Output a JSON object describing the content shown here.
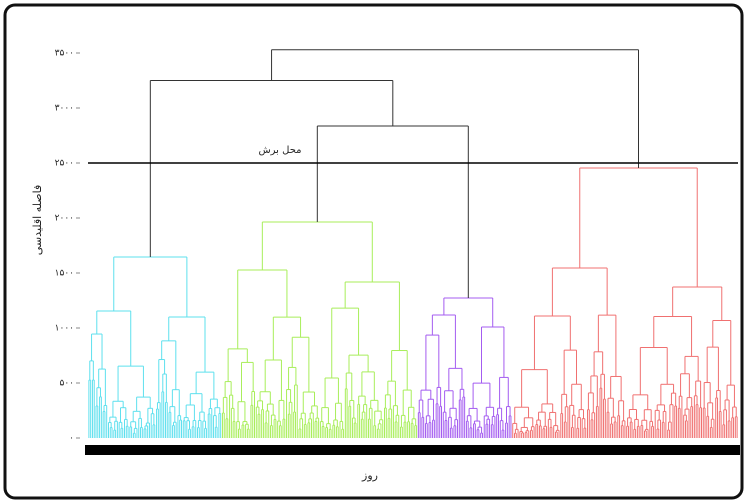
{
  "chart_data": {
    "type": "dendrogram",
    "ylabel": "فاصله اقلیدسی",
    "xlabel": "روز",
    "cut_label": "محل برش",
    "cut_height": 2500,
    "ylim": [
      0,
      3800
    ],
    "yticks": [
      {
        "value": 0,
        "label": "۰"
      },
      {
        "value": 500,
        "label": "۵۰۰"
      },
      {
        "value": 1000,
        "label": "۱۰۰۰"
      },
      {
        "value": 1500,
        "label": "۱۵۰۰"
      },
      {
        "value": 2000,
        "label": "۲۰۰۰"
      },
      {
        "value": 2500,
        "label": "۲۵۰۰"
      },
      {
        "value": 3000,
        "label": "۳۰۰۰"
      },
      {
        "value": 3500,
        "label": "۳۵۰۰"
      }
    ],
    "clusters": [
      {
        "color": "#5ee0ee",
        "leaf_count": 75,
        "height": 1645,
        "split_heights": [
          1155,
          1100
        ]
      },
      {
        "color": "#a8ee5a",
        "leaf_count": 110,
        "height": 1964,
        "split_heights": [
          1527,
          1418
        ]
      },
      {
        "color": "#a45cf0",
        "leaf_count": 53,
        "height": 1273,
        "split_heights": [
          1118,
          1009
        ]
      },
      {
        "color": "#f07070",
        "leaf_count": 127,
        "height": 2455,
        "split_heights": [
          1545,
          1373
        ]
      }
    ],
    "merges": [
      {
        "join": [
          1,
          2
        ],
        "height": 2836
      },
      {
        "join": [
          0,
          4
        ],
        "height": 3250
      },
      {
        "join": [
          5,
          3
        ],
        "height": 3530
      }
    ],
    "merge_color": "#333333"
  }
}
